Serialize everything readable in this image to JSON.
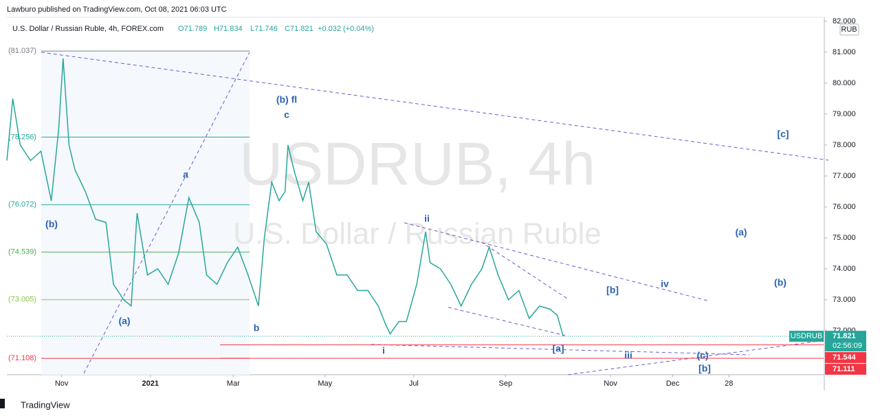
{
  "header": {
    "published": "Lawburo published on TradingView.com, Oct 08, 2021 06:03 UTC",
    "symbol": "U.S. Dollar / Russian Ruble, 4h, FOREX.com",
    "open": "O71.789",
    "high": "H71.834",
    "low": "L71.746",
    "close": "C71.821",
    "change": "+0.032 (+0.04%)",
    "currency": "RUB"
  },
  "footer": {
    "brand": "TradingView"
  },
  "chart_data": {
    "type": "line",
    "watermark": [
      "USDRUB, 4h",
      "U.S. Dollar / Russian Ruble"
    ],
    "x": [
      -37,
      -33,
      -28,
      -21,
      -14,
      -7,
      -2,
      1,
      5,
      9,
      16,
      23,
      30,
      35,
      42,
      47,
      51,
      58,
      65,
      72,
      79,
      86,
      93,
      98,
      105,
      112,
      119,
      126,
      133,
      137,
      142,
      147,
      151,
      153,
      157,
      163,
      167,
      172,
      179,
      186,
      193,
      200,
      207,
      214,
      219,
      222,
      228,
      233,
      240,
      246,
      249,
      256,
      263,
      270,
      277,
      284,
      289,
      295,
      302,
      309,
      316,
      323,
      330,
      335,
      339
    ],
    "series": [
      {
        "name": "USDRUB",
        "color": "#26a69a",
        "values": [
          77.5,
          79.5,
          78,
          77.5,
          77.8,
          76.2,
          78.5,
          80.8,
          78,
          77.2,
          76.5,
          75.6,
          75.5,
          73.5,
          73,
          72.8,
          75.8,
          73.8,
          74,
          73.5,
          74.5,
          76.3,
          75.5,
          73.8,
          73.5,
          74.2,
          74.7,
          73.8,
          72.8,
          75,
          76.8,
          76.2,
          76.5,
          78,
          77.2,
          76.2,
          76.8,
          75.2,
          74.8,
          73.8,
          73.8,
          73.3,
          73.3,
          72.8,
          72.2,
          71.9,
          72.3,
          72.3,
          73.5,
          75.2,
          74.2,
          74,
          73.5,
          72.8,
          73.5,
          74,
          74.7,
          73.8,
          73,
          73.3,
          72.4,
          72.8,
          72.7,
          72.5,
          71.821
        ]
      }
    ],
    "xlim": [
      -37,
      515
    ],
    "xticks": [
      {
        "value": 0,
        "label": "Nov"
      },
      {
        "value": 60,
        "label": "2021"
      },
      {
        "value": 116,
        "label": "Mar"
      },
      {
        "value": 178,
        "label": "May"
      },
      {
        "value": 238,
        "label": "Jul"
      },
      {
        "value": 300,
        "label": "Sep"
      },
      {
        "value": 371,
        "label": "Nov"
      },
      {
        "value": 413,
        "label": "Dec"
      },
      {
        "value": 451,
        "label": "28"
      }
    ],
    "ylim": [
      70.58,
      82.13
    ],
    "yticks": [
      {
        "value": 72,
        "label": "72.000"
      },
      {
        "value": 73,
        "label": "73.000"
      },
      {
        "value": 74,
        "label": "74.000"
      },
      {
        "value": 75,
        "label": "75.000"
      },
      {
        "value": 76,
        "label": "76.000"
      },
      {
        "value": 77,
        "label": "77.000"
      },
      {
        "value": 78,
        "label": "78.000"
      },
      {
        "value": 79,
        "label": "79.000"
      },
      {
        "value": 80,
        "label": "80.000"
      },
      {
        "value": 81,
        "label": "81.000"
      },
      {
        "value": 82,
        "label": "82.000"
      }
    ],
    "fib_levels": [
      {
        "value": 81.037,
        "label": "(81.037)",
        "color": "#787b86"
      },
      {
        "value": 78.256,
        "label": "(78.256)",
        "color": "#26a69a"
      },
      {
        "value": 76.072,
        "label": "(76.072)",
        "color": "#26a69a"
      },
      {
        "value": 74.539,
        "label": "(74.539)",
        "color": "#4caf50"
      },
      {
        "value": 73.005,
        "label": "(73.005)",
        "color": "#8bc34a"
      },
      {
        "value": 71.108,
        "label": "(71.108)",
        "color": "#f23645"
      }
    ],
    "price_tags": [
      {
        "value": 71.821,
        "label": "71.821",
        "color": "#26a69a"
      },
      {
        "value": 71.544,
        "label": "71.544",
        "color": "#f23645"
      },
      {
        "value": 71.111,
        "label": "71.111",
        "color": "#f23645"
      }
    ],
    "countdown": "02:56:09",
    "annotations": [
      "(b)",
      "a",
      "(a)",
      "b",
      "(b) fl",
      "c",
      "ii",
      "i",
      "[a]",
      "[b]",
      "iv",
      "iii",
      "(c)",
      "[b]",
      "(a)",
      "(b)",
      "[c]"
    ]
  }
}
